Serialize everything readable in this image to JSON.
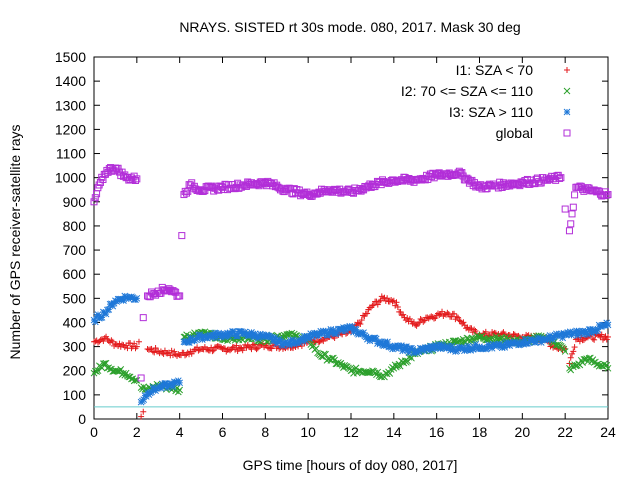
{
  "chart_data": {
    "type": "scatter",
    "title": "NRAYS. SISTED rt 30s mode. 080, 2017. Mask 30 deg",
    "xlabel": "GPS time [hours of doy 080, 2017]",
    "ylabel": "Number of GPS receiver-satellite rays",
    "xlim": [
      0,
      24
    ],
    "ylim": [
      0,
      1500
    ],
    "xticks": [
      0,
      2,
      4,
      6,
      8,
      10,
      12,
      14,
      16,
      18,
      20,
      22,
      24
    ],
    "yticks": [
      0,
      100,
      200,
      300,
      400,
      500,
      600,
      700,
      800,
      900,
      1000,
      1100,
      1200,
      1300,
      1400,
      1500
    ],
    "reference_line": {
      "y": 50,
      "color": "#66cccc"
    },
    "legend_position": "top-right",
    "series": [
      {
        "name": "I1: SZA < 70",
        "marker": "+",
        "color": "#e31a1c",
        "points": [
          [
            0,
            320
          ],
          [
            0.5,
            335
          ],
          [
            1,
            310
          ],
          [
            1.5,
            305
          ],
          [
            2,
            300
          ],
          [
            2.1,
            320
          ],
          [
            2.2,
            10
          ],
          [
            2.3,
            30
          ],
          [
            2.5,
            290
          ],
          [
            3,
            280
          ],
          [
            3.5,
            275
          ],
          [
            4,
            265
          ],
          [
            4.5,
            280
          ],
          [
            5,
            290
          ],
          [
            6,
            290
          ],
          [
            7,
            295
          ],
          [
            8,
            305
          ],
          [
            9,
            300
          ],
          [
            10,
            320
          ],
          [
            11,
            340
          ],
          [
            12,
            360
          ],
          [
            12.5,
            410
          ],
          [
            13,
            470
          ],
          [
            13.5,
            500
          ],
          [
            14,
            490
          ],
          [
            14.5,
            420
          ],
          [
            15,
            390
          ],
          [
            15.5,
            420
          ],
          [
            16,
            430
          ],
          [
            16.5,
            440
          ],
          [
            17,
            420
          ],
          [
            17.5,
            370
          ],
          [
            18,
            350
          ],
          [
            19,
            350
          ],
          [
            20,
            340
          ],
          [
            21,
            330
          ],
          [
            21.5,
            300
          ],
          [
            22,
            290
          ],
          [
            22.2,
            230
          ],
          [
            22.5,
            330
          ],
          [
            23,
            340
          ],
          [
            24,
            340
          ]
        ]
      },
      {
        "name": "I2: 70 <= SZA <= 110",
        "marker": "x",
        "color": "#2ca02c",
        "points": [
          [
            0,
            190
          ],
          [
            0.5,
            230
          ],
          [
            1,
            200
          ],
          [
            1.5,
            190
          ],
          [
            2,
            160
          ],
          [
            2.2,
            130
          ],
          [
            2.5,
            120
          ],
          [
            3,
            140
          ],
          [
            3.5,
            130
          ],
          [
            4,
            120
          ],
          [
            4.2,
            340
          ],
          [
            5,
            360
          ],
          [
            6,
            330
          ],
          [
            7,
            340
          ],
          [
            8,
            330
          ],
          [
            9,
            350
          ],
          [
            10,
            330
          ],
          [
            10.5,
            270
          ],
          [
            11,
            250
          ],
          [
            12,
            200
          ],
          [
            13,
            200
          ],
          [
            13.5,
            180
          ],
          [
            14,
            210
          ],
          [
            15,
            270
          ],
          [
            16,
            300
          ],
          [
            17,
            320
          ],
          [
            18,
            340
          ],
          [
            19,
            330
          ],
          [
            20,
            320
          ],
          [
            21,
            340
          ],
          [
            21.5,
            320
          ],
          [
            22,
            280
          ],
          [
            22.2,
            210
          ],
          [
            22.5,
            220
          ],
          [
            23,
            250
          ],
          [
            24,
            210
          ]
        ]
      },
      {
        "name": "I3: SZA > 110",
        "marker": "*",
        "color": "#1f78d8",
        "points": [
          [
            0,
            410
          ],
          [
            0.5,
            440
          ],
          [
            1,
            490
          ],
          [
            1.5,
            505
          ],
          [
            2,
            500
          ],
          [
            2.2,
            70
          ],
          [
            2.5,
            110
          ],
          [
            3,
            130
          ],
          [
            3.5,
            140
          ],
          [
            4,
            150
          ],
          [
            4.2,
            320
          ],
          [
            5,
            340
          ],
          [
            6,
            350
          ],
          [
            7,
            355
          ],
          [
            8,
            340
          ],
          [
            9,
            310
          ],
          [
            10,
            340
          ],
          [
            11,
            360
          ],
          [
            12,
            375
          ],
          [
            13,
            330
          ],
          [
            14,
            300
          ],
          [
            15,
            280
          ],
          [
            16,
            300
          ],
          [
            17,
            290
          ],
          [
            18,
            300
          ],
          [
            19,
            300
          ],
          [
            20,
            320
          ],
          [
            21,
            330
          ],
          [
            22,
            350
          ],
          [
            23,
            360
          ],
          [
            24,
            390
          ]
        ]
      },
      {
        "name": "global",
        "marker": "square",
        "color": "#b22ed8",
        "points": [
          [
            0,
            900
          ],
          [
            0.3,
            980
          ],
          [
            0.6,
            1030
          ],
          [
            1,
            1040
          ],
          [
            1.5,
            1000
          ],
          [
            2,
            995
          ],
          [
            2.2,
            170
          ],
          [
            2.3,
            420
          ],
          [
            2.5,
            510
          ],
          [
            3,
            530
          ],
          [
            3.5,
            540
          ],
          [
            4,
            510
          ],
          [
            4.1,
            760
          ],
          [
            4.2,
            930
          ],
          [
            4.5,
            970
          ],
          [
            5,
            950
          ],
          [
            6,
            960
          ],
          [
            7,
            970
          ],
          [
            8,
            980
          ],
          [
            9,
            950
          ],
          [
            10,
            930
          ],
          [
            10.5,
            940
          ],
          [
            11,
            950
          ],
          [
            12,
            940
          ],
          [
            13,
            970
          ],
          [
            14,
            990
          ],
          [
            15,
            990
          ],
          [
            16,
            1010
          ],
          [
            17,
            1020
          ],
          [
            18,
            960
          ],
          [
            19,
            970
          ],
          [
            20,
            980
          ],
          [
            21,
            990
          ],
          [
            21.8,
            1000
          ],
          [
            22,
            870
          ],
          [
            22.2,
            780
          ],
          [
            22.5,
            960
          ],
          [
            23,
            950
          ],
          [
            24,
            930
          ]
        ]
      }
    ]
  }
}
